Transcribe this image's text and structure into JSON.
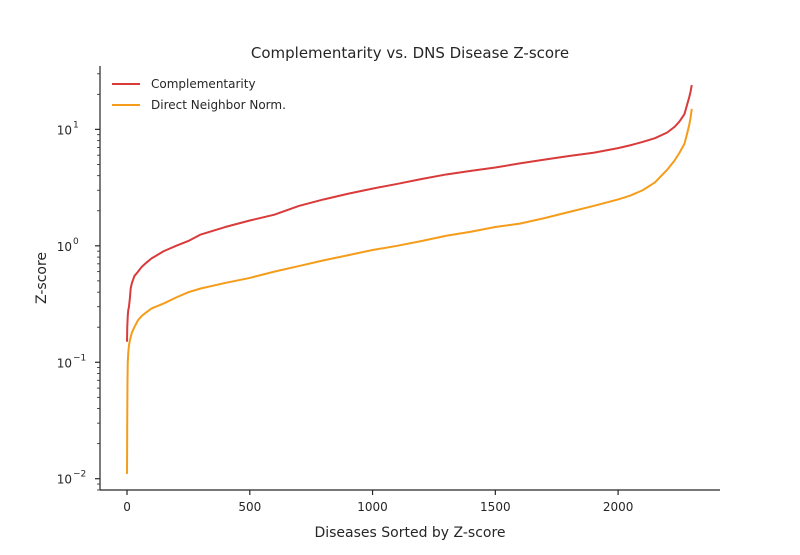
{
  "chart_data": {
    "type": "line",
    "title": "Complementarity vs. DNS Disease Z-score",
    "xlabel": "Diseases Sorted by Z-score",
    "ylabel": "Z-score",
    "xlim": [
      -110,
      2415
    ],
    "ylim": [
      0.008,
      35
    ],
    "yscale": "log",
    "grid": false,
    "legend_position": "top-left",
    "x_ticks": [
      {
        "value": 0,
        "label": "0"
      },
      {
        "value": 500,
        "label": "500"
      },
      {
        "value": 1000,
        "label": "1000"
      },
      {
        "value": 1500,
        "label": "1500"
      },
      {
        "value": 2000,
        "label": "2000"
      }
    ],
    "y_ticks": [
      {
        "value": 0.01,
        "base": "10",
        "exp": "−2"
      },
      {
        "value": 0.1,
        "base": "10",
        "exp": "−1"
      },
      {
        "value": 1,
        "base": "10",
        "exp": "0"
      },
      {
        "value": 10,
        "base": "10",
        "exp": "1"
      }
    ],
    "series": [
      {
        "name": "Complementarity",
        "color": "#d93a3a",
        "x": [
          0,
          1,
          3,
          5,
          8,
          12,
          15,
          20,
          30,
          45,
          60,
          80,
          100,
          150,
          200,
          250,
          300,
          400,
          500,
          600,
          700,
          800,
          900,
          1000,
          1100,
          1200,
          1300,
          1400,
          1500,
          1600,
          1700,
          1800,
          1900,
          2000,
          2050,
          2100,
          2150,
          2200,
          2230,
          2250,
          2270,
          2280,
          2290,
          2295,
          2300
        ],
        "y": [
          0.15,
          0.2,
          0.25,
          0.28,
          0.3,
          0.36,
          0.43,
          0.48,
          0.55,
          0.6,
          0.66,
          0.72,
          0.78,
          0.9,
          1.0,
          1.1,
          1.25,
          1.45,
          1.65,
          1.85,
          2.2,
          2.5,
          2.8,
          3.1,
          3.4,
          3.75,
          4.1,
          4.4,
          4.7,
          5.1,
          5.5,
          5.9,
          6.3,
          6.9,
          7.3,
          7.8,
          8.4,
          9.4,
          10.5,
          11.7,
          13.5,
          16,
          19,
          21,
          24
        ]
      },
      {
        "name": "Direct Neighbor Norm.",
        "color": "#f59c1a",
        "x": [
          0,
          1,
          2,
          3,
          5,
          8,
          12,
          15,
          20,
          30,
          45,
          60,
          80,
          100,
          150,
          200,
          250,
          300,
          400,
          500,
          600,
          700,
          800,
          900,
          1000,
          1100,
          1200,
          1300,
          1400,
          1500,
          1600,
          1700,
          1800,
          1900,
          2000,
          2050,
          2100,
          2150,
          2200,
          2230,
          2250,
          2270,
          2280,
          2290,
          2295,
          2300
        ],
        "y": [
          0.011,
          0.035,
          0.07,
          0.1,
          0.12,
          0.14,
          0.155,
          0.165,
          0.18,
          0.2,
          0.23,
          0.25,
          0.27,
          0.29,
          0.32,
          0.36,
          0.4,
          0.43,
          0.48,
          0.53,
          0.6,
          0.67,
          0.75,
          0.83,
          0.92,
          1.0,
          1.1,
          1.22,
          1.32,
          1.45,
          1.55,
          1.73,
          1.95,
          2.2,
          2.5,
          2.7,
          3.0,
          3.5,
          4.5,
          5.4,
          6.3,
          7.5,
          9.0,
          11,
          12.5,
          15
        ]
      }
    ]
  }
}
